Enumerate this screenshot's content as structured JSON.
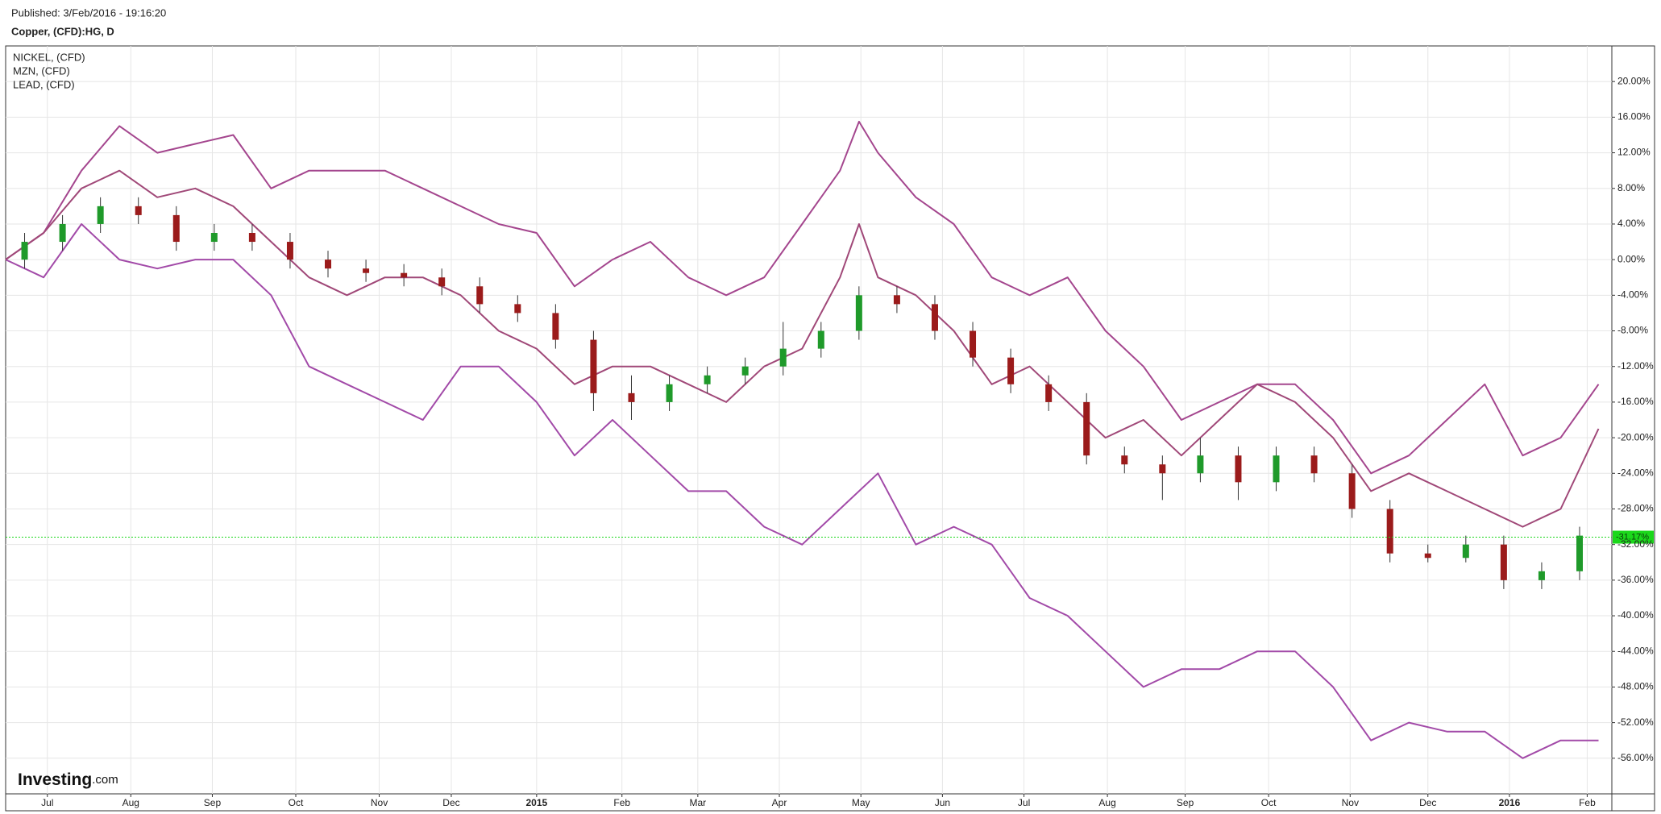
{
  "chart_data": {
    "type": "candlestick",
    "subtitle": "Published: 3/Feb/2016 - 19:16:20",
    "title": "Copper, (CFD):HG, D",
    "watermark": [
      "Investing",
      ".com"
    ],
    "xlim": [
      0,
      84.7
    ],
    "xticks": [
      {
        "value": 2.2,
        "label": "Jul"
      },
      {
        "value": 6.6,
        "label": "Aug"
      },
      {
        "value": 10.9,
        "label": "Sep"
      },
      {
        "value": 15.3,
        "label": "Oct"
      },
      {
        "value": 19.7,
        "label": "Nov"
      },
      {
        "value": 23.5,
        "label": "Dec"
      },
      {
        "value": 28.0,
        "label": "2015"
      },
      {
        "value": 32.5,
        "label": "Feb"
      },
      {
        "value": 36.5,
        "label": "Mar"
      },
      {
        "value": 40.8,
        "label": "Apr"
      },
      {
        "value": 45.1,
        "label": "May"
      },
      {
        "value": 49.4,
        "label": "Jun"
      },
      {
        "value": 53.7,
        "label": "Jul"
      },
      {
        "value": 58.1,
        "label": "Aug"
      },
      {
        "value": 62.2,
        "label": "Sep"
      },
      {
        "value": 66.6,
        "label": "Oct"
      },
      {
        "value": 70.9,
        "label": "Nov"
      },
      {
        "value": 75.0,
        "label": "Dec"
      },
      {
        "value": 79.3,
        "label": "2016"
      },
      {
        "value": 83.4,
        "label": "Feb"
      }
    ],
    "ylim": [
      -60,
      24
    ],
    "yticks": [
      {
        "value": 20,
        "label": "20.00%"
      },
      {
        "value": 16,
        "label": "16.00%"
      },
      {
        "value": 12,
        "label": "12.00%"
      },
      {
        "value": 8,
        "label": "8.00%"
      },
      {
        "value": 4,
        "label": "4.00%"
      },
      {
        "value": 0,
        "label": "0.00%"
      },
      {
        "value": -4,
        "label": "-4.00%"
      },
      {
        "value": -8,
        "label": "-8.00%"
      },
      {
        "value": -12,
        "label": "-12.00%"
      },
      {
        "value": -16,
        "label": "-16.00%"
      },
      {
        "value": -20,
        "label": "-20.00%"
      },
      {
        "value": -24,
        "label": "-24.00%"
      },
      {
        "value": -28,
        "label": "-28.00%"
      },
      {
        "value": -32,
        "label": "-32.00%"
      },
      {
        "value": -36,
        "label": "-36.00%"
      },
      {
        "value": -40,
        "label": "-40.00%"
      },
      {
        "value": -44,
        "label": "-44.00%"
      },
      {
        "value": -48,
        "label": "-48.00%"
      },
      {
        "value": -52,
        "label": "-52.00%"
      },
      {
        "value": -56,
        "label": "-56.00%"
      }
    ],
    "grid": true,
    "legend": "top-left",
    "candles": {
      "up_color": "#1f9a2a",
      "down_color": "#9b1b1b",
      "x": [
        1,
        3,
        5,
        7,
        9,
        11,
        13,
        15,
        17,
        19,
        21,
        23,
        25,
        27,
        29,
        31,
        33,
        35,
        37,
        39,
        41,
        43,
        45,
        47,
        49,
        51,
        53,
        55,
        57,
        59,
        61,
        63,
        65,
        67,
        69,
        71,
        73,
        75,
        77,
        79,
        81,
        83
      ],
      "open": [
        0,
        2,
        4,
        6,
        5,
        2,
        3,
        2,
        0,
        -1,
        -1.5,
        -2,
        -3,
        -5,
        -6,
        -9,
        -15,
        -16,
        -14,
        -13,
        -12,
        -10,
        -8,
        -4,
        -5,
        -8,
        -11,
        -14,
        -16,
        -22,
        -23,
        -24,
        -22,
        -25,
        -22,
        -24,
        -28,
        -33,
        -33.5,
        -32,
        -36,
        -35
      ],
      "high": [
        3,
        5,
        7,
        7,
        6,
        4,
        4,
        3,
        1,
        0,
        -0.5,
        -1,
        -2,
        -4,
        -5,
        -8,
        -13,
        -13,
        -12,
        -11,
        -7,
        -7,
        -3,
        -3,
        -4,
        -7,
        -10,
        -13,
        -15,
        -21,
        -22,
        -20,
        -21,
        -21,
        -21,
        -23,
        -27,
        -32,
        -31,
        -31,
        -34,
        -30
      ],
      "low": [
        -1,
        1,
        3,
        4,
        1,
        1,
        1,
        -1,
        -2,
        -2.5,
        -3,
        -4,
        -6,
        -7,
        -10,
        -17,
        -18,
        -17,
        -15,
        -14,
        -13,
        -11,
        -9,
        -6,
        -9,
        -12,
        -15,
        -17,
        -23,
        -24,
        -27,
        -25,
        -27,
        -26,
        -25,
        -29,
        -34,
        -34,
        -34,
        -37,
        -37,
        -36
      ],
      "close": [
        2,
        4,
        6,
        5,
        2,
        3,
        2,
        0,
        -1,
        -1.5,
        -2,
        -3,
        -5,
        -6,
        -9,
        -15,
        -16,
        -14,
        -13,
        -12,
        -10,
        -8,
        -4,
        -5,
        -8,
        -11,
        -14,
        -16,
        -22,
        -23,
        -24,
        -22,
        -25,
        -22,
        -24,
        -28,
        -33,
        -33.5,
        -32,
        -36,
        -35,
        -31
      ]
    },
    "last": {
      "value": -31.17,
      "label": "-31.17%",
      "color": "#1bd81b"
    },
    "series": [
      {
        "name": "NICKEL,  (CFD)",
        "color": "#a24aa8",
        "x": [
          0,
          2,
          4,
          6,
          8,
          10,
          12,
          14,
          16,
          18,
          20,
          22,
          24,
          26,
          28,
          30,
          32,
          34,
          36,
          38,
          40,
          42,
          44,
          46,
          48,
          50,
          52,
          54,
          56,
          58,
          60,
          62,
          64,
          66,
          68,
          70,
          72,
          74,
          76,
          78,
          80,
          82,
          84
        ],
        "values": [
          0,
          -2,
          4,
          0,
          -1,
          0,
          0,
          -4,
          -12,
          -14,
          -16,
          -18,
          -12,
          -12,
          -16,
          -22,
          -18,
          -22,
          -26,
          -26,
          -30,
          -32,
          -28,
          -24,
          -32,
          -30,
          -32,
          -38,
          -40,
          -44,
          -48,
          -46,
          -46,
          -44,
          -44,
          -48,
          -54,
          -52,
          -53,
          -53,
          -56,
          -54,
          -54
        ]
      },
      {
        "name": "MZN,  (CFD)",
        "color": "#a4468e",
        "x": [
          0,
          2,
          4,
          6,
          8,
          10,
          12,
          14,
          16,
          18,
          20,
          22,
          24,
          26,
          28,
          30,
          32,
          34,
          36,
          38,
          40,
          42,
          44,
          45,
          46,
          48,
          50,
          52,
          54,
          56,
          58,
          60,
          62,
          64,
          66,
          68,
          70,
          72,
          74,
          76,
          78,
          80,
          82,
          84
        ],
        "values": [
          0,
          3,
          10,
          15,
          12,
          13,
          14,
          8,
          10,
          10,
          10,
          8,
          6,
          4,
          3,
          -3,
          0,
          2,
          -2,
          -4,
          -2,
          4,
          10,
          15.5,
          12,
          7,
          4,
          -2,
          -4,
          -2,
          -8,
          -12,
          -18,
          -16,
          -14,
          -14,
          -18,
          -24,
          -22,
          -18,
          -14,
          -22,
          -20,
          -14
        ]
      },
      {
        "name": "LEAD,  (CFD)",
        "color": "#a04878",
        "x": [
          0,
          2,
          4,
          6,
          8,
          10,
          12,
          14,
          16,
          18,
          20,
          22,
          24,
          26,
          28,
          30,
          32,
          34,
          36,
          38,
          40,
          42,
          44,
          45,
          46,
          48,
          50,
          52,
          54,
          56,
          58,
          60,
          62,
          64,
          66,
          68,
          70,
          72,
          74,
          76,
          78,
          80,
          82,
          84
        ],
        "values": [
          0,
          3,
          8,
          10,
          7,
          8,
          6,
          2,
          -2,
          -4,
          -2,
          -2,
          -4,
          -8,
          -10,
          -14,
          -12,
          -12,
          -14,
          -16,
          -12,
          -10,
          -2,
          4,
          -2,
          -4,
          -8,
          -14,
          -12,
          -16,
          -20,
          -18,
          -22,
          -18,
          -14,
          -16,
          -20,
          -26,
          -24,
          -26,
          -28,
          -30,
          -28,
          -19
        ]
      }
    ]
  }
}
